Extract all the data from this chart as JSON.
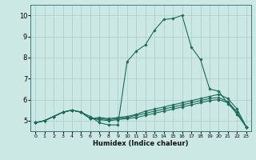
{
  "xlabel": "Humidex (Indice chaleur)",
  "bg_color": "#cce8e4",
  "grid_color": "#aaccca",
  "line_color": "#1a6b5a",
  "xlim": [
    -0.5,
    23.5
  ],
  "ylim": [
    4.5,
    10.5
  ],
  "yticks": [
    5,
    6,
    7,
    8,
    9,
    10
  ],
  "xticks": [
    0,
    1,
    2,
    3,
    4,
    5,
    6,
    7,
    8,
    9,
    10,
    11,
    12,
    13,
    14,
    15,
    16,
    17,
    18,
    19,
    20,
    21,
    22,
    23
  ],
  "series": [
    [
      4.9,
      5.0,
      5.2,
      5.4,
      5.5,
      5.4,
      5.2,
      4.9,
      4.8,
      4.8,
      7.8,
      8.3,
      8.6,
      9.3,
      9.8,
      9.85,
      10.0,
      8.5,
      7.9,
      6.5,
      6.4,
      5.8,
      5.4,
      4.7
    ],
    [
      4.9,
      5.0,
      5.2,
      5.4,
      5.5,
      5.4,
      5.1,
      5.15,
      5.1,
      5.15,
      5.2,
      5.3,
      5.45,
      5.55,
      5.65,
      5.75,
      5.85,
      5.95,
      6.05,
      6.15,
      6.25,
      6.05,
      5.55,
      4.7
    ],
    [
      4.9,
      5.0,
      5.2,
      5.4,
      5.5,
      5.4,
      5.1,
      5.1,
      5.05,
      5.1,
      5.15,
      5.25,
      5.35,
      5.45,
      5.55,
      5.65,
      5.75,
      5.85,
      5.95,
      6.05,
      6.1,
      5.9,
      5.4,
      4.7
    ],
    [
      4.9,
      5.0,
      5.2,
      5.4,
      5.5,
      5.4,
      5.1,
      5.05,
      5.0,
      5.05,
      5.1,
      5.15,
      5.25,
      5.35,
      5.45,
      5.55,
      5.65,
      5.75,
      5.85,
      5.95,
      6.0,
      5.85,
      5.3,
      4.7
    ]
  ]
}
